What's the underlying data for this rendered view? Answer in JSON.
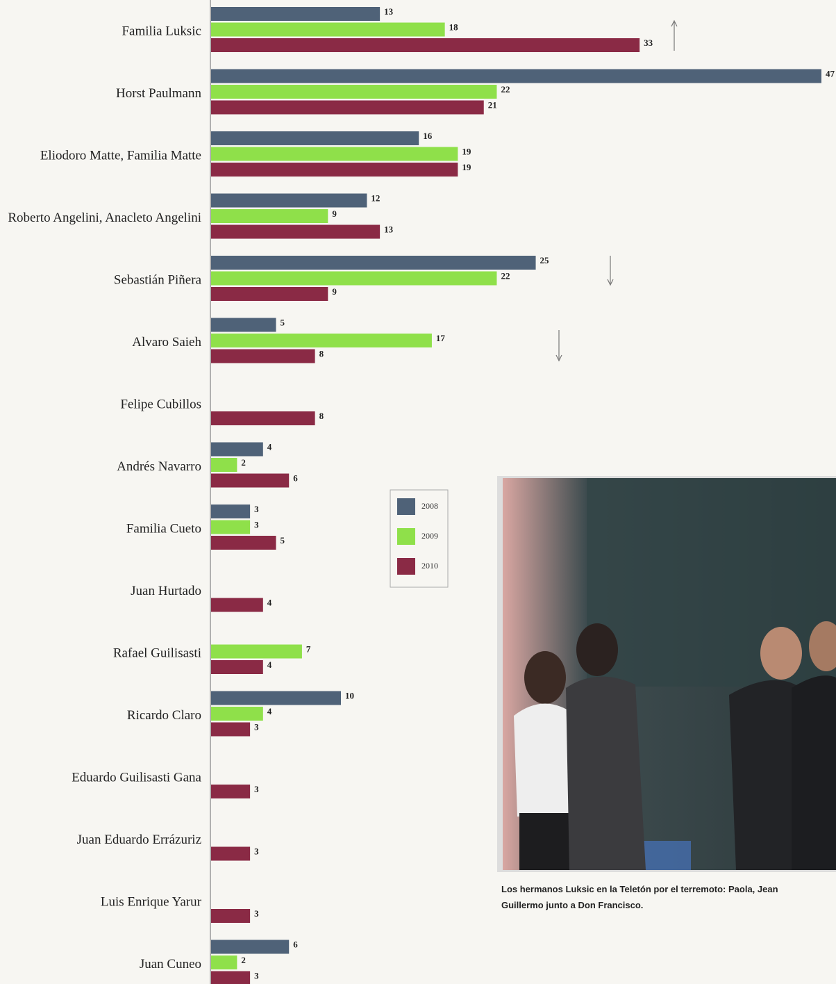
{
  "chart_data": {
    "type": "bar",
    "orientation": "horizontal",
    "categories": [
      "Familia Luksic",
      "Horst Paulmann",
      "Eliodoro Matte, Familia Matte",
      "Roberto Angelini, Anacleto Angelini",
      "Sebastián Piñera",
      "Alvaro Saieh",
      "Felipe Cubillos",
      "Andrés Navarro",
      "Familia Cueto",
      "Juan Hurtado",
      "Rafael Guilisasti",
      "Ricardo Claro",
      "Eduardo Guilisasti Gana",
      "Juan Eduardo Errázuriz",
      "Luis Enrique Yarur",
      "Juan Cuneo"
    ],
    "series": [
      {
        "name": "2008",
        "color": "#4f6278",
        "values": [
          13,
          47,
          16,
          12,
          25,
          5,
          null,
          4,
          3,
          null,
          null,
          10,
          null,
          null,
          null,
          6
        ]
      },
      {
        "name": "2009",
        "color": "#8fe04a",
        "values": [
          18,
          22,
          19,
          9,
          22,
          17,
          null,
          2,
          3,
          null,
          7,
          4,
          null,
          null,
          null,
          2
        ]
      },
      {
        "name": "2010",
        "color": "#8a2a45",
        "values": [
          33,
          21,
          19,
          13,
          9,
          8,
          8,
          6,
          5,
          4,
          4,
          3,
          3,
          3,
          3,
          3
        ]
      }
    ]
  },
  "photo": {
    "caption": [
      "Los hermanos Luksic en la Teletón por el terremoto: Paola, Jean",
      "Guillermo junto a Don Francisco."
    ]
  }
}
